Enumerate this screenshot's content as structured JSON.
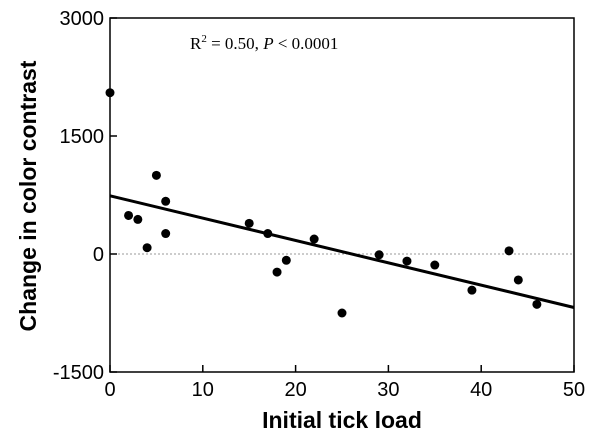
{
  "chart_data": {
    "type": "scatter",
    "title": "",
    "xlabel": "Initial tick load",
    "ylabel": "Change in color contrast",
    "xlim": [
      0,
      50
    ],
    "ylim": [
      -1500,
      3000
    ],
    "x_ticks": [
      "0",
      "10",
      "20",
      "30",
      "40",
      "50"
    ],
    "y_ticks": [
      "3000",
      "1500",
      "0",
      "-1500"
    ],
    "annotation": {
      "r2_label": "R",
      "r2_sup": "2",
      "r2_value": " = 0.50, ",
      "p_label": "P",
      "p_value": " < 0.0001"
    },
    "reference_line": {
      "y": 0,
      "style": "dotted"
    },
    "points": [
      {
        "x": 0,
        "y": 2050
      },
      {
        "x": 2,
        "y": 490
      },
      {
        "x": 3,
        "y": 440
      },
      {
        "x": 4,
        "y": 80
      },
      {
        "x": 5,
        "y": 1000
      },
      {
        "x": 6,
        "y": 670
      },
      {
        "x": 6,
        "y": 260
      },
      {
        "x": 15,
        "y": 390
      },
      {
        "x": 17,
        "y": 260
      },
      {
        "x": 18,
        "y": -230
      },
      {
        "x": 19,
        "y": -80
      },
      {
        "x": 22,
        "y": 190
      },
      {
        "x": 25,
        "y": -750
      },
      {
        "x": 29,
        "y": -10
      },
      {
        "x": 32,
        "y": -90
      },
      {
        "x": 35,
        "y": -140
      },
      {
        "x": 39,
        "y": -460
      },
      {
        "x": 43,
        "y": 40
      },
      {
        "x": 44,
        "y": -330
      },
      {
        "x": 46,
        "y": -640
      }
    ],
    "regression_line": {
      "x": [
        0,
        50
      ],
      "y": [
        740,
        -680
      ]
    },
    "grid": false,
    "legend": "none",
    "colors": {
      "points": "#000000",
      "line": "#000000",
      "zero_line": "#999999"
    }
  }
}
